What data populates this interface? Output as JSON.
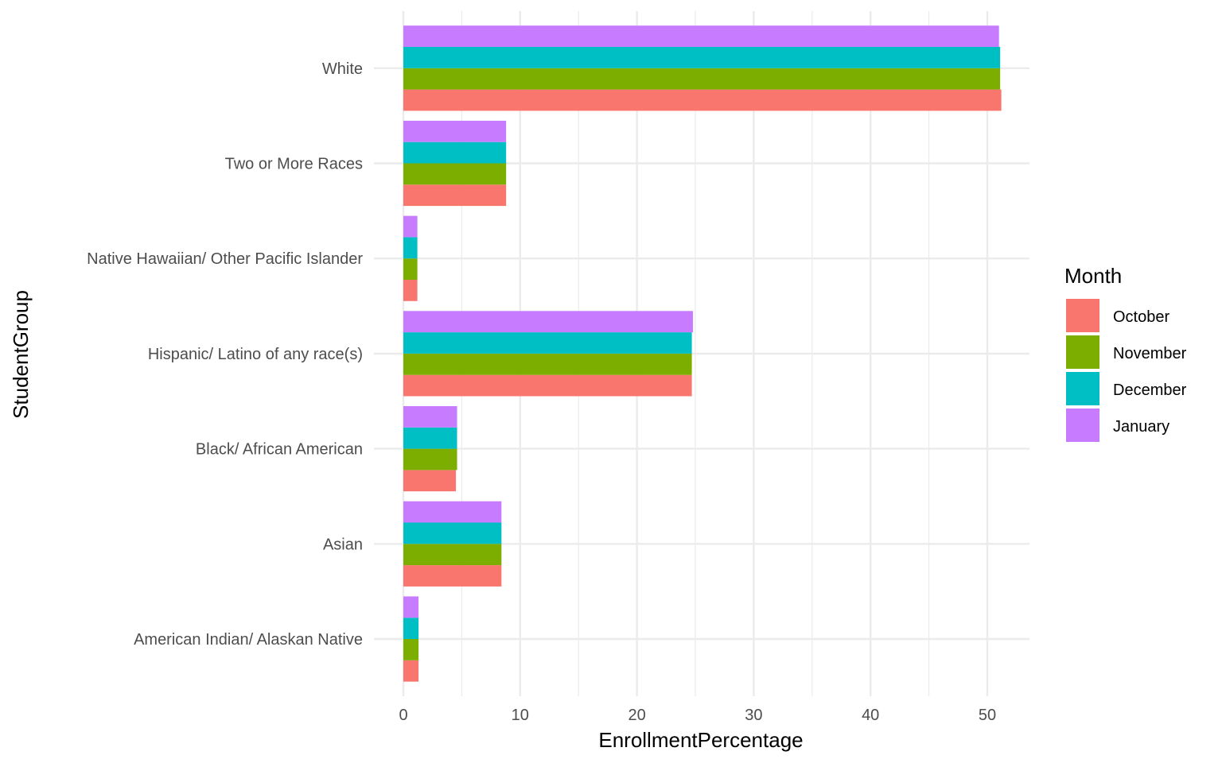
{
  "chart_data": {
    "type": "bar",
    "orientation": "horizontal",
    "xlabel": "EnrollmentPercentage",
    "ylabel": "StudentGroup",
    "xlim": [
      0,
      53.6
    ],
    "xticks": [
      0,
      10,
      20,
      30,
      40,
      50
    ],
    "grid": true,
    "legend": {
      "title": "Month",
      "position": "right"
    },
    "categories": [
      "American Indian/ Alaskan Native",
      "Asian",
      "Black/ African American",
      "Hispanic/ Latino of any race(s)",
      "Native Hawaiian/ Other Pacific Islander",
      "Two or More Races",
      "White"
    ],
    "series": [
      {
        "name": "October",
        "color": "#F8766D",
        "values": [
          1.3,
          8.4,
          4.5,
          24.7,
          1.2,
          8.8,
          51.2
        ]
      },
      {
        "name": "November",
        "color": "#7CAE00",
        "values": [
          1.3,
          8.4,
          4.6,
          24.7,
          1.2,
          8.8,
          51.1
        ]
      },
      {
        "name": "December",
        "color": "#00BFC4",
        "values": [
          1.3,
          8.4,
          4.6,
          24.7,
          1.2,
          8.8,
          51.1
        ]
      },
      {
        "name": "January",
        "color": "#C77CFF",
        "values": [
          1.3,
          8.4,
          4.6,
          24.8,
          1.2,
          8.8,
          51.0
        ]
      }
    ]
  }
}
